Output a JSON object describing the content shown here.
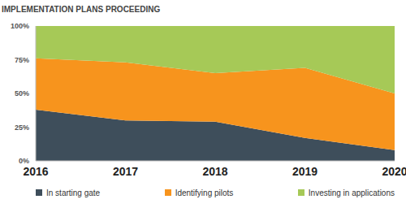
{
  "chart_data": {
    "type": "area",
    "title": "IMPLEMENTATION PLANS PROCEEDING",
    "categories": [
      "2016",
      "2017",
      "2018",
      "2019",
      "2020"
    ],
    "series": [
      {
        "name": "In starting gate",
        "color": "#3e4e5b",
        "values": [
          38,
          30,
          29,
          17,
          8
        ]
      },
      {
        "name": "Identifying pilots",
        "color": "#f7941d",
        "values": [
          38,
          43,
          36,
          52,
          42
        ]
      },
      {
        "name": "Investing in applications",
        "color": "#a6c957",
        "values": [
          24,
          27,
          35,
          31,
          50
        ]
      }
    ],
    "ylim": [
      0,
      100
    ],
    "yticks": [
      {
        "value": 0,
        "label": "0%"
      },
      {
        "value": 25,
        "label": "25%"
      },
      {
        "value": 50,
        "label": "50%"
      },
      {
        "value": 75,
        "label": "75%"
      },
      {
        "value": 100,
        "label": "100%"
      }
    ],
    "stacked": true,
    "grid": false,
    "legend": "bottom"
  }
}
